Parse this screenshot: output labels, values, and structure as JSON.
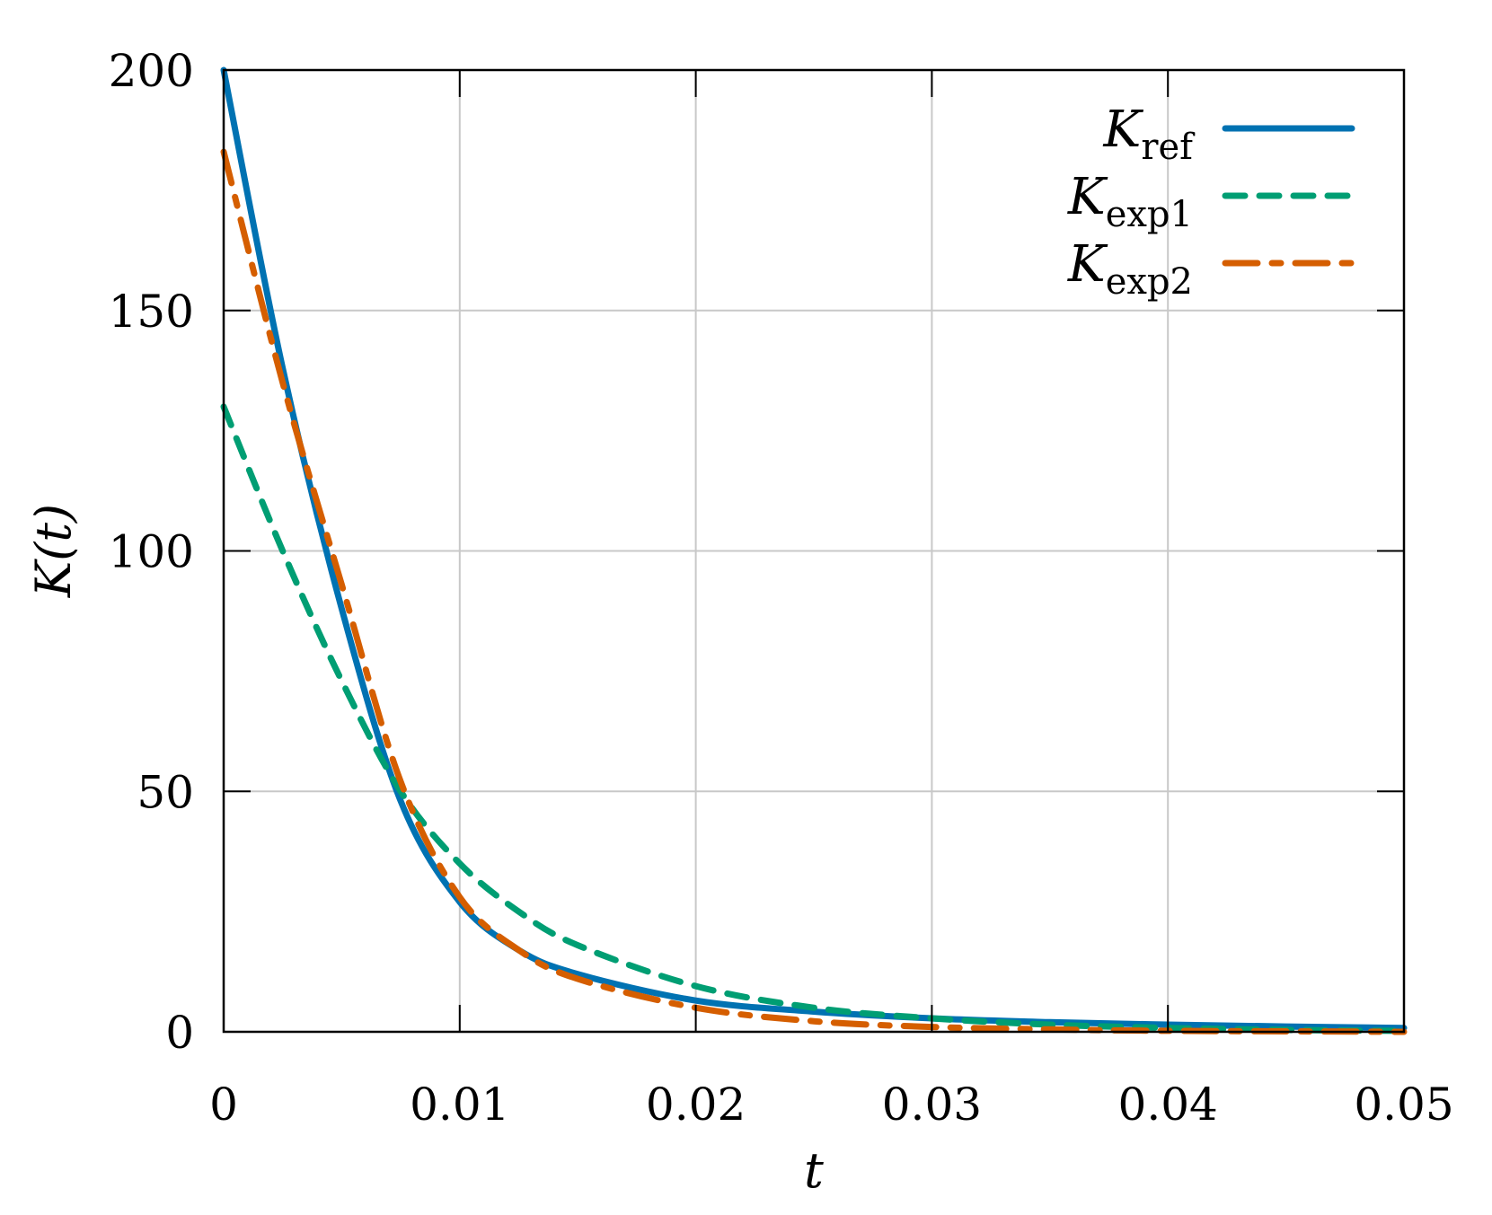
{
  "chart_data": {
    "type": "line",
    "title": "",
    "xlabel": "t",
    "ylabel": "K(t)",
    "xlim": [
      0,
      0.05
    ],
    "ylim": [
      0,
      200
    ],
    "xticks": [
      0,
      0.01,
      0.02,
      0.03,
      0.04,
      0.05
    ],
    "xtick_labels": [
      "0",
      "0.01",
      "0.02",
      "0.03",
      "0.04",
      "0.05"
    ],
    "yticks": [
      0,
      50,
      100,
      150,
      200
    ],
    "ytick_labels": [
      "0",
      "50",
      "100",
      "150",
      "200"
    ],
    "grid": true,
    "legend_position": "upper right",
    "series": [
      {
        "name": "K_ref",
        "label_main": "K",
        "label_sub": "ref",
        "color": "#0072b2",
        "style": "solid",
        "x": [
          0,
          0.0025,
          0.005,
          0.0075,
          0.01,
          0.0125,
          0.015,
          0.02,
          0.025,
          0.03,
          0.035,
          0.04,
          0.045,
          0.05
        ],
        "values": [
          200,
          138,
          88,
          48,
          27,
          17,
          12,
          6.5,
          4.2,
          2.8,
          2.0,
          1.5,
          1.1,
          0.8
        ]
      },
      {
        "name": "K_exp1",
        "label_main": "K",
        "label_sub": "exp1",
        "color": "#009e73",
        "style": "dashed",
        "x": [
          0,
          0.0025,
          0.005,
          0.0075,
          0.01,
          0.0125,
          0.015,
          0.02,
          0.025,
          0.03,
          0.035,
          0.04,
          0.045,
          0.05
        ],
        "values": [
          130,
          100,
          73,
          50,
          35,
          25,
          18,
          9.5,
          5,
          2.8,
          1.5,
          0.8,
          0.4,
          0.2
        ]
      },
      {
        "name": "K_exp2",
        "label_main": "K",
        "label_sub": "exp2",
        "color": "#d55e00",
        "style": "dashdot",
        "x": [
          0,
          0.0025,
          0.005,
          0.0075,
          0.01,
          0.0125,
          0.015,
          0.02,
          0.025,
          0.03,
          0.035,
          0.04,
          0.045,
          0.05
        ],
        "values": [
          183,
          135,
          93,
          52,
          28,
          17,
          11,
          5,
          2.2,
          1.0,
          0.5,
          0.2,
          0.1,
          0.0
        ]
      }
    ]
  },
  "style": {
    "grid_color": "#c8c8c8",
    "frame_color": "#000000",
    "background": "#ffffff"
  }
}
